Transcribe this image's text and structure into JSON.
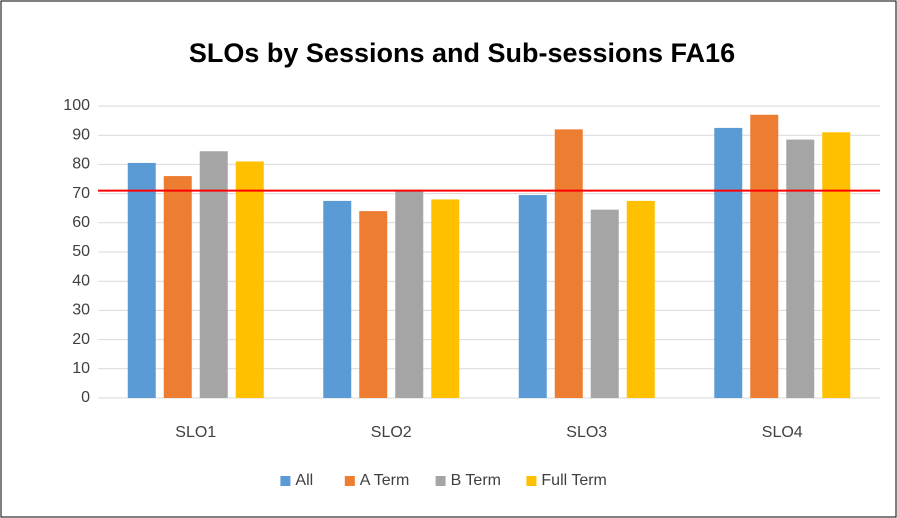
{
  "chart_data": {
    "type": "bar",
    "title": "SLOs by Sessions and Sub-sessions FA16",
    "categories": [
      "SLO1",
      "SLO2",
      "SLO3",
      "SLO4"
    ],
    "series": [
      {
        "name": "All",
        "color": "#5b9bd5",
        "values": [
          80.5,
          67.5,
          69.5,
          92.5
        ]
      },
      {
        "name": "A Term",
        "color": "#ed7d31",
        "values": [
          76,
          64,
          92,
          97
        ]
      },
      {
        "name": "B Term",
        "color": "#a5a5a5",
        "values": [
          84.5,
          71,
          64.5,
          88.5
        ]
      },
      {
        "name": "Full Term",
        "color": "#ffc000",
        "values": [
          81,
          68,
          67.5,
          91
        ]
      }
    ],
    "reference_line": {
      "value": 71,
      "color": "#ff0000"
    },
    "ylim": [
      0,
      100
    ],
    "yticks": [
      0,
      10,
      20,
      30,
      40,
      50,
      60,
      70,
      80,
      90,
      100
    ],
    "grid": true,
    "legend": "bottom"
  }
}
